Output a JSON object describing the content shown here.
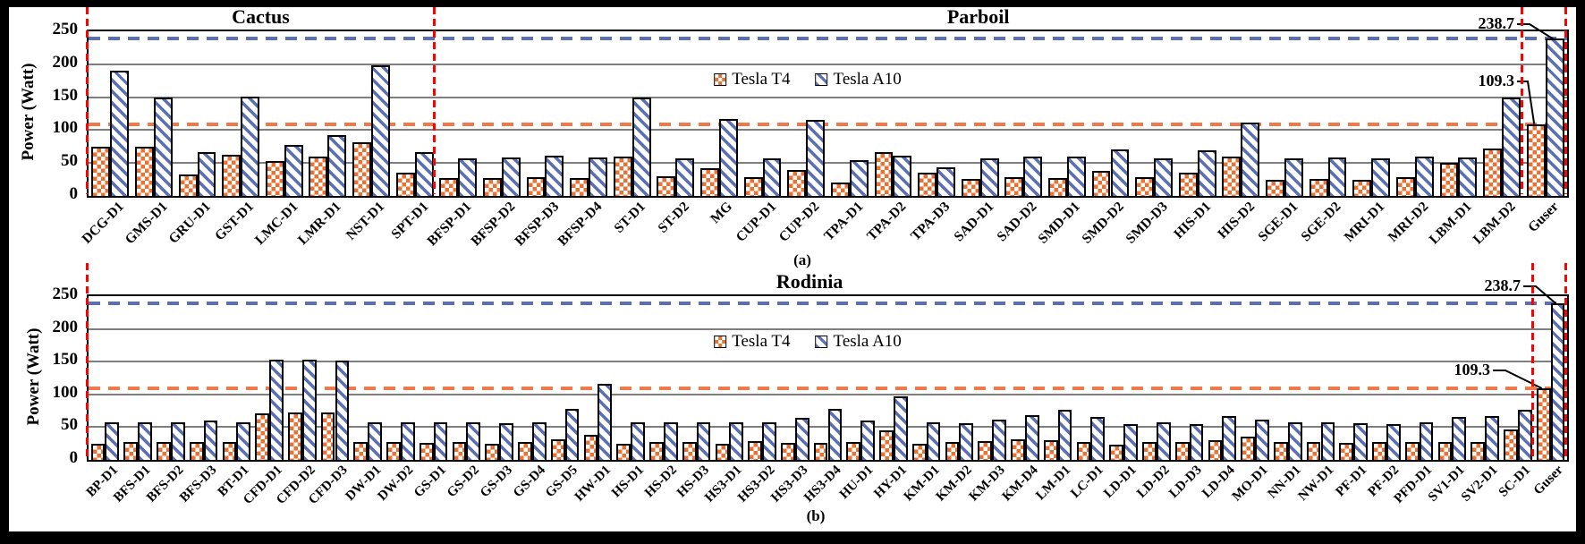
{
  "figure": {
    "panels": [
      "(a)",
      "(b)"
    ]
  },
  "colors": {
    "t4": "#E97132",
    "a10": "#5B6FB5",
    "t4_dash": "#F0784B",
    "a10_dash": "#5B6FB5",
    "divider_red": "#FF0000",
    "gridline": "#7F7F7F",
    "frame": "#000000"
  },
  "legend": {
    "items": [
      {
        "label": "Tesla T4",
        "key": "t4"
      },
      {
        "label": "Tesla A10",
        "key": "a10"
      }
    ]
  },
  "chart_data": [
    {
      "type": "bar",
      "panel_label": "(a)",
      "ylabel": "Power (Watt)",
      "ylim": [
        0,
        250
      ],
      "yticks": [
        0,
        50,
        100,
        150,
        200,
        250
      ],
      "grid": true,
      "legend_position": "inside-top-center",
      "sections": [
        {
          "label": "Cactus",
          "from": 0,
          "to": 8
        },
        {
          "label": "Parboil",
          "from": 8,
          "to": 33
        }
      ],
      "dividers_at": [
        0,
        8,
        33,
        34
      ],
      "hlines": [
        {
          "value": 238.7,
          "key": "a10"
        },
        {
          "value": 109.3,
          "key": "t4"
        }
      ],
      "annotations": [
        {
          "label": "238.7",
          "category": "Guser",
          "key": "a10"
        },
        {
          "label": "109.3",
          "category": "Guser",
          "key": "t4"
        }
      ],
      "categories": [
        "DCG-D1",
        "GMS-D1",
        "GRU-D1",
        "GST-D1",
        "LMC-D1",
        "LMR-D1",
        "NST-D1",
        "SPT-D1",
        "BFSP-D1",
        "BFSP-D2",
        "BFSP-D3",
        "BFSP-D4",
        "ST-D1",
        "ST-D2",
        "MG",
        "CUP-D1",
        "CUP-D2",
        "TPA-D1",
        "TPA-D2",
        "TPA-D3",
        "SAD-D1",
        "SAD-D2",
        "SMD-D1",
        "SMD-D2",
        "SMD-D3",
        "HIS-D1",
        "HIS-D2",
        "SGE-D1",
        "SGE-D2",
        "MRI-D1",
        "MRI-D2",
        "LBM-D1",
        "LBM-D2",
        "Guser"
      ],
      "series": [
        {
          "name": "Tesla T4",
          "key": "t4",
          "values": [
            75,
            75,
            33,
            63,
            53,
            60,
            82,
            36,
            27,
            27,
            29,
            27,
            60,
            30,
            42,
            28,
            39,
            21,
            67,
            35,
            26,
            28,
            27,
            38,
            28,
            36,
            60,
            24,
            26,
            24,
            28,
            50,
            72,
            109.3
          ]
        },
        {
          "name": "Tesla A10",
          "key": "a10",
          "values": [
            190,
            149,
            67,
            151,
            77,
            93,
            199,
            66,
            57,
            58,
            61,
            58,
            150,
            57,
            117,
            57,
            116,
            55,
            61,
            44,
            57,
            60,
            60,
            71,
            57,
            69,
            112,
            57,
            58,
            57,
            60,
            58,
            149,
            238.7
          ]
        }
      ]
    },
    {
      "type": "bar",
      "panel_label": "(b)",
      "ylabel": "Power (Watt)",
      "ylim": [
        0,
        250
      ],
      "yticks": [
        0,
        50,
        100,
        150,
        200,
        250
      ],
      "grid": true,
      "legend_position": "inside-top-center",
      "sections": [
        {
          "label": "Rodinia",
          "from": 0,
          "to": 44
        }
      ],
      "dividers_at": [
        0,
        44,
        45
      ],
      "hlines": [
        {
          "value": 238.7,
          "key": "a10"
        },
        {
          "value": 109.3,
          "key": "t4"
        }
      ],
      "annotations": [
        {
          "label": "238.7",
          "category": "Guser",
          "key": "a10"
        },
        {
          "label": "109.3",
          "category": "Guser",
          "key": "t4"
        }
      ],
      "categories": [
        "BP-D1",
        "BFS-D1",
        "BFS-D2",
        "BFS-D3",
        "BT-D1",
        "CFD-D1",
        "CFD-D2",
        "CFD-D3",
        "DW-D1",
        "DW-D2",
        "GS-D1",
        "GS-D2",
        "GS-D3",
        "GS-D4",
        "GS-D5",
        "HW-D1",
        "HS-D1",
        "HS-D2",
        "HS-D3",
        "HS3-D1",
        "HS3-D2",
        "HS3-D3",
        "HS3-D4",
        "HU-D1",
        "HY-D1",
        "KM-D1",
        "KM-D2",
        "KM-D3",
        "KM-D4",
        "LM-D1",
        "LC-D1",
        "LD-D1",
        "LD-D2",
        "LD-D3",
        "LD-D4",
        "MO-D1",
        "NN-D1",
        "NW-D1",
        "PF-D1",
        "PF-D2",
        "PFD-D1",
        "SV1-D1",
        "SV2-D1",
        "SC-D1",
        "Guser"
      ],
      "series": [
        {
          "name": "Tesla T4",
          "key": "t4",
          "values": [
            25,
            27,
            27,
            27,
            27,
            71,
            73,
            73,
            27,
            27,
            26,
            27,
            24,
            27,
            32,
            38,
            24,
            28,
            28,
            25,
            29,
            26,
            26,
            27,
            45,
            25,
            27,
            29,
            31,
            30,
            28,
            23,
            28,
            27,
            30,
            35,
            27,
            27,
            26,
            27,
            27,
            28,
            28,
            46,
            109.3
          ]
        },
        {
          "name": "Tesla A10",
          "key": "a10",
          "values": [
            57,
            58,
            58,
            60,
            58,
            153,
            153,
            152,
            57,
            58,
            57,
            57,
            56,
            58,
            78,
            116,
            58,
            57,
            58,
            57,
            58,
            64,
            78,
            60,
            97,
            57,
            56,
            62,
            68,
            77,
            65,
            55,
            57,
            55,
            67,
            62,
            58,
            58,
            56,
            55,
            57,
            65,
            67,
            76,
            238.7
          ]
        }
      ]
    }
  ]
}
